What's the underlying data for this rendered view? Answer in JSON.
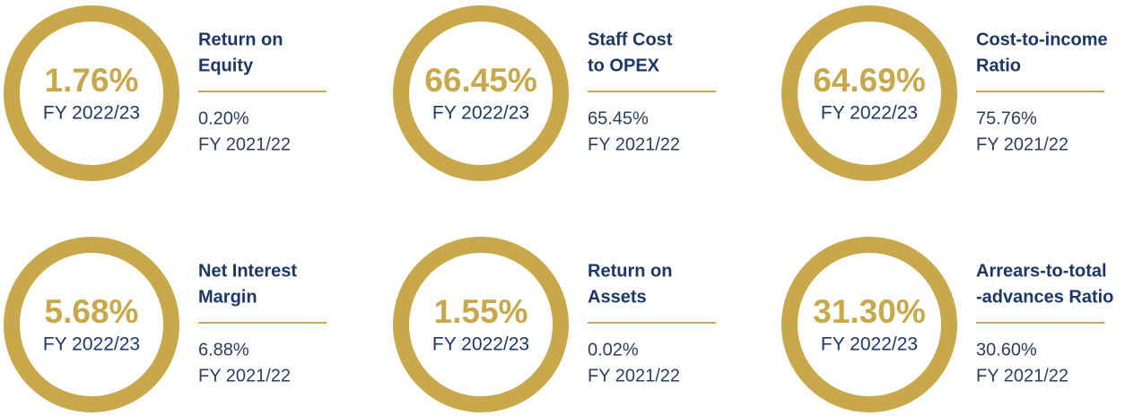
{
  "cards": [
    {
      "value": "1.76%",
      "period": "FY 2022/23",
      "title": [
        "Return on",
        "Equity"
      ],
      "previous_value": "0.20%",
      "previous_period": "FY 2021/22"
    },
    {
      "value": "66.45%",
      "period": "FY 2022/23",
      "title": [
        "Staff Cost",
        "to OPEX"
      ],
      "previous_value": "65.45%",
      "previous_period": "FY 2021/22"
    },
    {
      "value": "64.69%",
      "period": "FY 2022/23",
      "title": [
        "Cost-to-income",
        "Ratio"
      ],
      "previous_value": "75.76%",
      "previous_period": "FY 2021/22"
    },
    {
      "value": "5.68%",
      "period": "FY 2022/23",
      "title": [
        "Net Interest",
        "Margin"
      ],
      "previous_value": "6.88%",
      "previous_period": "FY 2021/22"
    },
    {
      "value": "1.55%",
      "period": "FY 2022/23",
      "title": [
        "Return on",
        "Assets"
      ],
      "previous_value": "0.02%",
      "previous_period": "FY 2021/22"
    },
    {
      "value": "31.30%",
      "period": "FY 2022/23",
      "title": [
        "Arrears-to-total",
        "-advances Ratio"
      ],
      "previous_value": "30.60%",
      "previous_period": "FY 2021/22"
    }
  ]
}
